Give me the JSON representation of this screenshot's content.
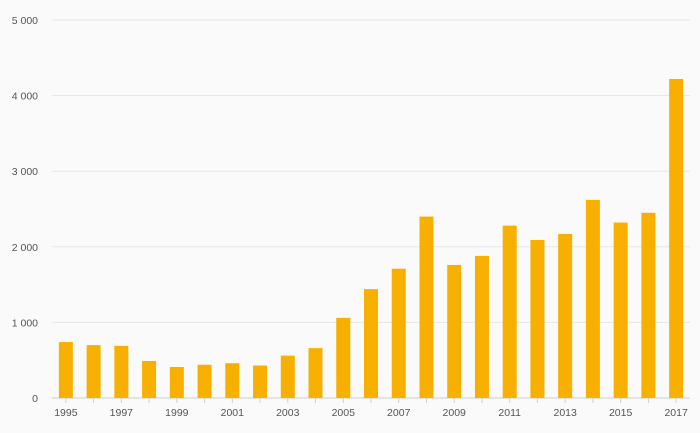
{
  "colors": {
    "bar": "#f7b000",
    "background": "#fafafa",
    "grid": "#e6e6e6"
  },
  "chart_data": {
    "type": "bar",
    "title": "",
    "xlabel": "",
    "ylabel": "",
    "grid": true,
    "ylim": [
      0,
      5000
    ],
    "yticks": [
      0,
      1000,
      2000,
      3000,
      4000,
      5000
    ],
    "ytick_labels": [
      "0",
      "1 000",
      "2 000",
      "3 000",
      "4 000",
      "5 000"
    ],
    "categories": [
      "1995",
      "1996",
      "1997",
      "1998",
      "1999",
      "2000",
      "2001",
      "2002",
      "2003",
      "2004",
      "2005",
      "2006",
      "2007",
      "2008",
      "2009",
      "2010",
      "2011",
      "2012",
      "2013",
      "2014",
      "2015",
      "2016",
      "2017"
    ],
    "xtick_labels": [
      "1995",
      "",
      "1997",
      "",
      "1999",
      "",
      "2001",
      "",
      "2003",
      "",
      "2005",
      "",
      "2007",
      "",
      "2009",
      "",
      "2011",
      "",
      "2013",
      "",
      "2015",
      "",
      "2017"
    ],
    "values": [
      740,
      700,
      690,
      490,
      410,
      440,
      460,
      430,
      560,
      660,
      1060,
      1440,
      1710,
      2400,
      1760,
      1880,
      2280,
      2090,
      2170,
      2620,
      2320,
      2450,
      4220
    ]
  }
}
